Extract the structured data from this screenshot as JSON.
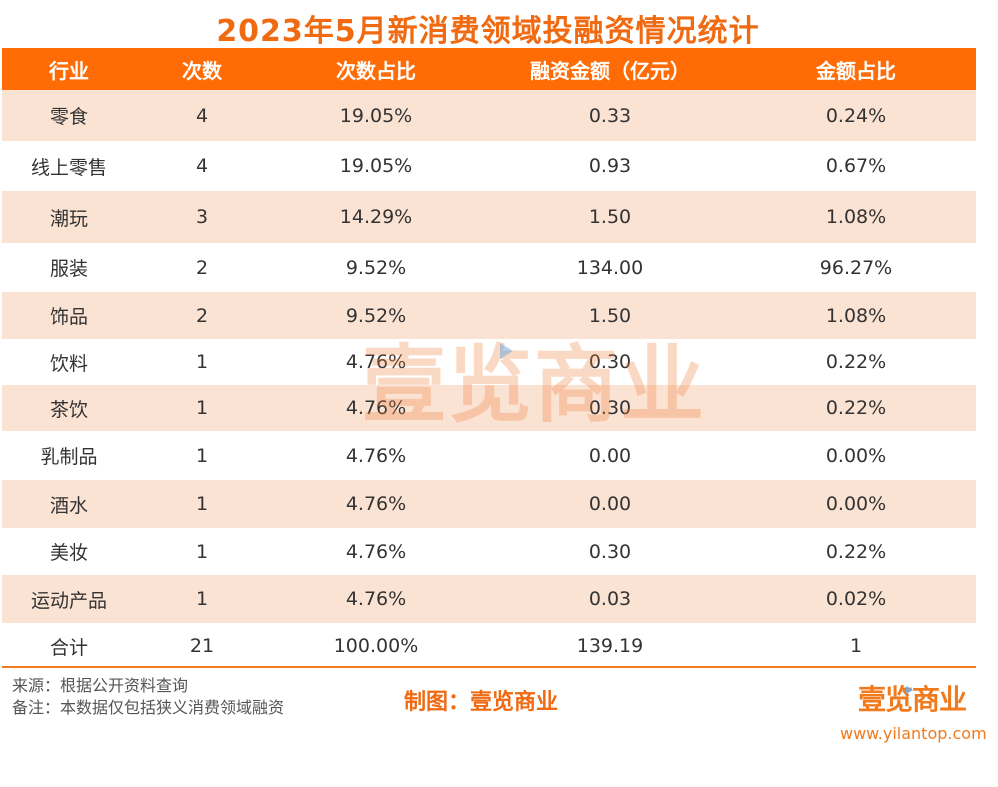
{
  "title": "2023年5月新消费领域投融资情况统计",
  "table": {
    "headers": [
      "行业",
      "次数",
      "次数占比",
      "融资金额（亿元）",
      "金额占比"
    ],
    "rows": [
      [
        "零食",
        "4",
        "19.05%",
        "0.33",
        "0.24%"
      ],
      [
        "线上零售",
        "4",
        "19.05%",
        "0.93",
        "0.67%"
      ],
      [
        "潮玩",
        "3",
        "14.29%",
        "1.50",
        "1.08%"
      ],
      [
        "服装",
        "2",
        "9.52%",
        "134.00",
        "96.27%"
      ],
      [
        "饰品",
        "2",
        "9.52%",
        "1.50",
        "1.08%"
      ],
      [
        "饮料",
        "1",
        "4.76%",
        "0.30",
        "0.22%"
      ],
      [
        "茶饮",
        "1",
        "4.76%",
        "0.30",
        "0.22%"
      ],
      [
        "乳制品",
        "1",
        "4.76%",
        "0.00",
        "0.00%"
      ],
      [
        "酒水",
        "1",
        "4.76%",
        "0.00",
        "0.00%"
      ],
      [
        "美妆",
        "1",
        "4.76%",
        "0.30",
        "0.22%"
      ],
      [
        "运动产品",
        "1",
        "4.76%",
        "0.03",
        "0.02%"
      ],
      [
        "合计",
        "21",
        "100.00%",
        "139.19",
        "1"
      ]
    ]
  },
  "footer": {
    "source": "来源：根据公开资料查询",
    "note": "备注：本数据仅包括狭义消费领域融资",
    "credit": "制图：壹览商业",
    "logo_text": "壹览商业",
    "website": "www.yilantop.com"
  },
  "watermark": "壹览商业",
  "colors": {
    "accent": "#ff6c06",
    "title": "#f06a12",
    "stripe": "#fbe3d4"
  }
}
